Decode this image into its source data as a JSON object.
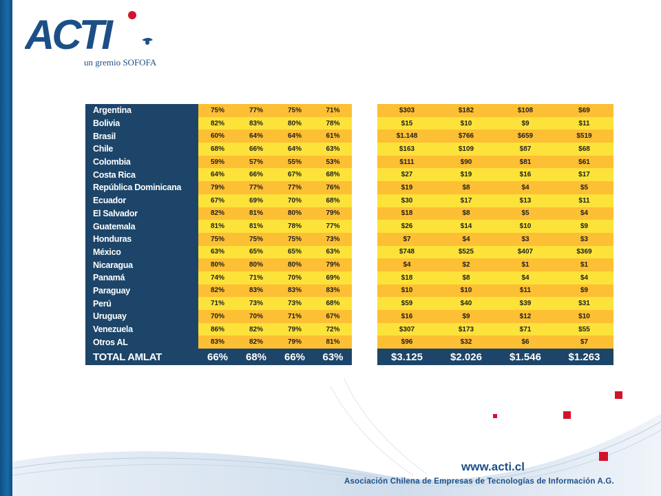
{
  "brand": {
    "logo_text": "ACTI",
    "tagline": "un gremio SOFOFA",
    "colors": {
      "blue": "#1c4f86",
      "red": "#d3132c",
      "orange": "#fdbf33",
      "yellow": "#fde23a",
      "navy": "#1c4569"
    }
  },
  "table_percent": {
    "rows": [
      {
        "country": "Argentina",
        "v": [
          "75%",
          "77%",
          "75%",
          "71%"
        ]
      },
      {
        "country": "Bolivia",
        "v": [
          "82%",
          "83%",
          "80%",
          "78%"
        ]
      },
      {
        "country": "Brasil",
        "v": [
          "60%",
          "64%",
          "64%",
          "61%"
        ]
      },
      {
        "country": "Chile",
        "v": [
          "68%",
          "66%",
          "64%",
          "63%"
        ]
      },
      {
        "country": "Colombia",
        "v": [
          "59%",
          "57%",
          "55%",
          "53%"
        ]
      },
      {
        "country": "Costa Rica",
        "v": [
          "64%",
          "66%",
          "67%",
          "68%"
        ]
      },
      {
        "country": "República Dominicana",
        "v": [
          "79%",
          "77%",
          "77%",
          "76%"
        ]
      },
      {
        "country": "Ecuador",
        "v": [
          "67%",
          "69%",
          "70%",
          "68%"
        ]
      },
      {
        "country": "El Salvador",
        "v": [
          "82%",
          "81%",
          "80%",
          "79%"
        ]
      },
      {
        "country": "Guatemala",
        "v": [
          "81%",
          "81%",
          "78%",
          "77%"
        ]
      },
      {
        "country": "Honduras",
        "v": [
          "75%",
          "75%",
          "75%",
          "73%"
        ]
      },
      {
        "country": "México",
        "v": [
          "63%",
          "65%",
          "65%",
          "63%"
        ]
      },
      {
        "country": "Nicaragua",
        "v": [
          "80%",
          "80%",
          "80%",
          "79%"
        ]
      },
      {
        "country": "Panamá",
        "v": [
          "74%",
          "71%",
          "70%",
          "69%"
        ]
      },
      {
        "country": "Paraguay",
        "v": [
          "82%",
          "83%",
          "83%",
          "83%"
        ]
      },
      {
        "country": "Perú",
        "v": [
          "71%",
          "73%",
          "73%",
          "68%"
        ]
      },
      {
        "country": "Uruguay",
        "v": [
          "70%",
          "70%",
          "71%",
          "67%"
        ]
      },
      {
        "country": "Venezuela",
        "v": [
          "86%",
          "82%",
          "79%",
          "72%"
        ]
      },
      {
        "country": "Otros AL",
        "v": [
          "83%",
          "82%",
          "79%",
          "81%"
        ]
      }
    ],
    "total": {
      "label": "TOTAL AMLAT",
      "v": [
        "66%",
        "68%",
        "66%",
        "63%"
      ]
    }
  },
  "table_value": {
    "rows": [
      [
        "$303",
        "$182",
        "$108",
        "$69"
      ],
      [
        "$15",
        "$10",
        "$9",
        "$11"
      ],
      [
        "$1.148",
        "$766",
        "$659",
        "$519"
      ],
      [
        "$163",
        "$109",
        "$87",
        "$68"
      ],
      [
        "$111",
        "$90",
        "$81",
        "$61"
      ],
      [
        "$27",
        "$19",
        "$16",
        "$17"
      ],
      [
        "$19",
        "$8",
        "$4",
        "$5"
      ],
      [
        "$30",
        "$17",
        "$13",
        "$11"
      ],
      [
        "$18",
        "$8",
        "$5",
        "$4"
      ],
      [
        "$26",
        "$14",
        "$10",
        "$9"
      ],
      [
        "$7",
        "$4",
        "$3",
        "$3"
      ],
      [
        "$748",
        "$525",
        "$407",
        "$369"
      ],
      [
        "$4",
        "$2",
        "$1",
        "$1"
      ],
      [
        "$18",
        "$8",
        "$4",
        "$4"
      ],
      [
        "$10",
        "$10",
        "$11",
        "$9"
      ],
      [
        "$59",
        "$40",
        "$39",
        "$31"
      ],
      [
        "$16",
        "$9",
        "$12",
        "$10"
      ],
      [
        "$307",
        "$173",
        "$71",
        "$55"
      ],
      [
        "$96",
        "$32",
        "$6",
        "$7"
      ]
    ],
    "total": [
      "$3.125",
      "$2.026",
      "$1.546",
      "$1.263"
    ]
  },
  "footer": {
    "url": "www.acti.cl",
    "org": "Asociación Chilena de Empresas de Tecnologías de Información A.G."
  }
}
